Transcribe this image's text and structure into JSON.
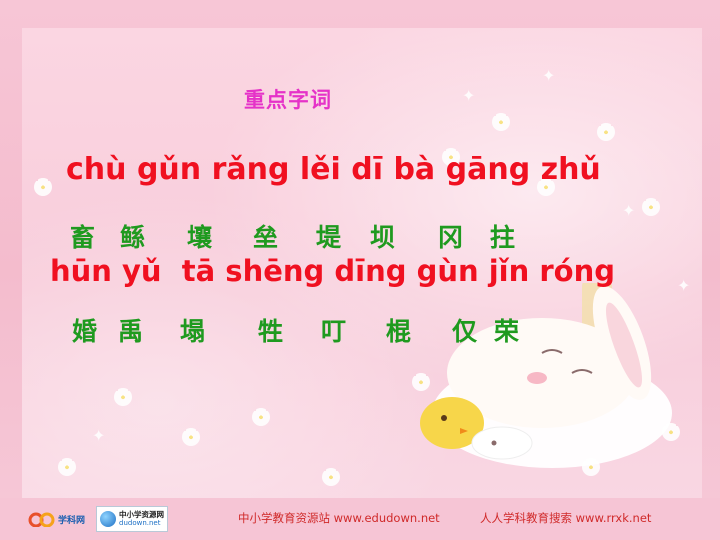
{
  "slide": {
    "title": "重点字词",
    "pinyin_line_1": "chù gǔn rǎng lěi dī bà gāng zhǔ",
    "hanzi_line_1": [
      "畜",
      "鲧",
      "壤",
      "垒",
      "堤",
      "坝",
      "冈",
      "拄"
    ],
    "pinyin_line_2": "hūn yǔ  tā shēng dīng gùn jǐn róng",
    "hanzi_line_2": [
      "婚",
      "禹",
      "塌",
      "牲",
      "叮",
      "棍",
      "仅",
      "荣"
    ]
  },
  "footer": {
    "logo_left_text": "学科网",
    "logo_mid_title": "中小学资源网",
    "logo_mid_sub": "dudown.net",
    "credit_left": "中小学教育资源站 www.edudown.net",
    "credit_right": "人人学科教育搜索 www.rrxk.net"
  },
  "colors": {
    "title": "#e532c8",
    "pinyin": "#f01020",
    "hanzi": "#1f9a1f",
    "background": "#f8cddb"
  }
}
